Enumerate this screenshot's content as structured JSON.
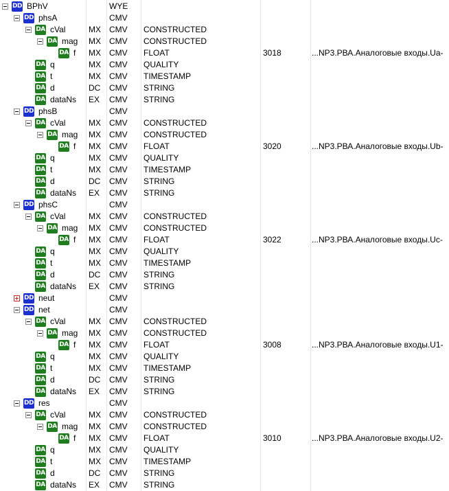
{
  "tree": [
    {
      "depth": 0,
      "kind": "DD",
      "expander": "open",
      "name": "BPhV",
      "fc": "",
      "cdc": "WYE",
      "type": "",
      "addr": "",
      "path": ""
    },
    {
      "depth": 1,
      "kind": "DD",
      "expander": "open",
      "name": "phsA",
      "fc": "",
      "cdc": "CMV",
      "type": "",
      "addr": "",
      "path": ""
    },
    {
      "depth": 2,
      "kind": "DA",
      "expander": "open",
      "name": "cVal",
      "fc": "MX",
      "cdc": "CMV",
      "type": "CONSTRUCTED",
      "addr": "",
      "path": ""
    },
    {
      "depth": 3,
      "kind": "DA",
      "expander": "open",
      "name": "mag",
      "fc": "MX",
      "cdc": "CMV",
      "type": "CONSTRUCTED",
      "addr": "",
      "path": ""
    },
    {
      "depth": 4,
      "kind": "DA",
      "expander": "none",
      "name": "f",
      "fc": "MX",
      "cdc": "CMV",
      "type": "FLOAT",
      "addr": "3018",
      "path": "...NP3.РВА.Аналоговые входы.Ua-"
    },
    {
      "depth": 2,
      "kind": "DA",
      "expander": "none",
      "name": "q",
      "fc": "MX",
      "cdc": "CMV",
      "type": "QUALITY",
      "addr": "",
      "path": ""
    },
    {
      "depth": 2,
      "kind": "DA",
      "expander": "none",
      "name": "t",
      "fc": "MX",
      "cdc": "CMV",
      "type": "TIMESTAMP",
      "addr": "",
      "path": ""
    },
    {
      "depth": 2,
      "kind": "DA",
      "expander": "none",
      "name": "d",
      "fc": "DC",
      "cdc": "CMV",
      "type": "STRING",
      "addr": "",
      "path": ""
    },
    {
      "depth": 2,
      "kind": "DA",
      "expander": "none",
      "name": "dataNs",
      "fc": "EX",
      "cdc": "CMV",
      "type": "STRING",
      "addr": "",
      "path": ""
    },
    {
      "depth": 1,
      "kind": "DD",
      "expander": "open",
      "name": "phsB",
      "fc": "",
      "cdc": "CMV",
      "type": "",
      "addr": "",
      "path": ""
    },
    {
      "depth": 2,
      "kind": "DA",
      "expander": "open",
      "name": "cVal",
      "fc": "MX",
      "cdc": "CMV",
      "type": "CONSTRUCTED",
      "addr": "",
      "path": ""
    },
    {
      "depth": 3,
      "kind": "DA",
      "expander": "open",
      "name": "mag",
      "fc": "MX",
      "cdc": "CMV",
      "type": "CONSTRUCTED",
      "addr": "",
      "path": ""
    },
    {
      "depth": 4,
      "kind": "DA",
      "expander": "none",
      "name": "f",
      "fc": "MX",
      "cdc": "CMV",
      "type": "FLOAT",
      "addr": "3020",
      "path": "...NP3.РВА.Аналоговые входы.Ub-"
    },
    {
      "depth": 2,
      "kind": "DA",
      "expander": "none",
      "name": "q",
      "fc": "MX",
      "cdc": "CMV",
      "type": "QUALITY",
      "addr": "",
      "path": ""
    },
    {
      "depth": 2,
      "kind": "DA",
      "expander": "none",
      "name": "t",
      "fc": "MX",
      "cdc": "CMV",
      "type": "TIMESTAMP",
      "addr": "",
      "path": ""
    },
    {
      "depth": 2,
      "kind": "DA",
      "expander": "none",
      "name": "d",
      "fc": "DC",
      "cdc": "CMV",
      "type": "STRING",
      "addr": "",
      "path": ""
    },
    {
      "depth": 2,
      "kind": "DA",
      "expander": "none",
      "name": "dataNs",
      "fc": "EX",
      "cdc": "CMV",
      "type": "STRING",
      "addr": "",
      "path": ""
    },
    {
      "depth": 1,
      "kind": "DD",
      "expander": "open",
      "name": "phsC",
      "fc": "",
      "cdc": "CMV",
      "type": "",
      "addr": "",
      "path": ""
    },
    {
      "depth": 2,
      "kind": "DA",
      "expander": "open",
      "name": "cVal",
      "fc": "MX",
      "cdc": "CMV",
      "type": "CONSTRUCTED",
      "addr": "",
      "path": ""
    },
    {
      "depth": 3,
      "kind": "DA",
      "expander": "open",
      "name": "mag",
      "fc": "MX",
      "cdc": "CMV",
      "type": "CONSTRUCTED",
      "addr": "",
      "path": ""
    },
    {
      "depth": 4,
      "kind": "DA",
      "expander": "none",
      "name": "f",
      "fc": "MX",
      "cdc": "CMV",
      "type": "FLOAT",
      "addr": "3022",
      "path": "...NP3.РВА.Аналоговые входы.Uc-"
    },
    {
      "depth": 2,
      "kind": "DA",
      "expander": "none",
      "name": "q",
      "fc": "MX",
      "cdc": "CMV",
      "type": "QUALITY",
      "addr": "",
      "path": ""
    },
    {
      "depth": 2,
      "kind": "DA",
      "expander": "none",
      "name": "t",
      "fc": "MX",
      "cdc": "CMV",
      "type": "TIMESTAMP",
      "addr": "",
      "path": ""
    },
    {
      "depth": 2,
      "kind": "DA",
      "expander": "none",
      "name": "d",
      "fc": "DC",
      "cdc": "CMV",
      "type": "STRING",
      "addr": "",
      "path": ""
    },
    {
      "depth": 2,
      "kind": "DA",
      "expander": "none",
      "name": "dataNs",
      "fc": "EX",
      "cdc": "CMV",
      "type": "STRING",
      "addr": "",
      "path": ""
    },
    {
      "depth": 1,
      "kind": "DD",
      "expander": "closed",
      "name": "neut",
      "fc": "",
      "cdc": "CMV",
      "type": "",
      "addr": "",
      "path": ""
    },
    {
      "depth": 1,
      "kind": "DD",
      "expander": "open",
      "name": "net",
      "fc": "",
      "cdc": "CMV",
      "type": "",
      "addr": "",
      "path": ""
    },
    {
      "depth": 2,
      "kind": "DA",
      "expander": "open",
      "name": "cVal",
      "fc": "MX",
      "cdc": "CMV",
      "type": "CONSTRUCTED",
      "addr": "",
      "path": ""
    },
    {
      "depth": 3,
      "kind": "DA",
      "expander": "open",
      "name": "mag",
      "fc": "MX",
      "cdc": "CMV",
      "type": "CONSTRUCTED",
      "addr": "",
      "path": ""
    },
    {
      "depth": 4,
      "kind": "DA",
      "expander": "none",
      "name": "f",
      "fc": "MX",
      "cdc": "CMV",
      "type": "FLOAT",
      "addr": "3008",
      "path": "...NP3.РВА.Аналоговые входы.U1-"
    },
    {
      "depth": 2,
      "kind": "DA",
      "expander": "none",
      "name": "q",
      "fc": "MX",
      "cdc": "CMV",
      "type": "QUALITY",
      "addr": "",
      "path": ""
    },
    {
      "depth": 2,
      "kind": "DA",
      "expander": "none",
      "name": "t",
      "fc": "MX",
      "cdc": "CMV",
      "type": "TIMESTAMP",
      "addr": "",
      "path": ""
    },
    {
      "depth": 2,
      "kind": "DA",
      "expander": "none",
      "name": "d",
      "fc": "DC",
      "cdc": "CMV",
      "type": "STRING",
      "addr": "",
      "path": ""
    },
    {
      "depth": 2,
      "kind": "DA",
      "expander": "none",
      "name": "dataNs",
      "fc": "EX",
      "cdc": "CMV",
      "type": "STRING",
      "addr": "",
      "path": ""
    },
    {
      "depth": 1,
      "kind": "DD",
      "expander": "open",
      "name": "res",
      "fc": "",
      "cdc": "CMV",
      "type": "",
      "addr": "",
      "path": ""
    },
    {
      "depth": 2,
      "kind": "DA",
      "expander": "open",
      "name": "cVal",
      "fc": "MX",
      "cdc": "CMV",
      "type": "CONSTRUCTED",
      "addr": "",
      "path": ""
    },
    {
      "depth": 3,
      "kind": "DA",
      "expander": "open",
      "name": "mag",
      "fc": "MX",
      "cdc": "CMV",
      "type": "CONSTRUCTED",
      "addr": "",
      "path": ""
    },
    {
      "depth": 4,
      "kind": "DA",
      "expander": "none",
      "name": "f",
      "fc": "MX",
      "cdc": "CMV",
      "type": "FLOAT",
      "addr": "3010",
      "path": "...NP3.РВА.Аналоговые входы.U2-"
    },
    {
      "depth": 2,
      "kind": "DA",
      "expander": "none",
      "name": "q",
      "fc": "MX",
      "cdc": "CMV",
      "type": "QUALITY",
      "addr": "",
      "path": ""
    },
    {
      "depth": 2,
      "kind": "DA",
      "expander": "none",
      "name": "t",
      "fc": "MX",
      "cdc": "CMV",
      "type": "TIMESTAMP",
      "addr": "",
      "path": ""
    },
    {
      "depth": 2,
      "kind": "DA",
      "expander": "none",
      "name": "d",
      "fc": "DC",
      "cdc": "CMV",
      "type": "STRING",
      "addr": "",
      "path": ""
    },
    {
      "depth": 2,
      "kind": "DA",
      "expander": "none",
      "name": "dataNs",
      "fc": "EX",
      "cdc": "CMV",
      "type": "STRING",
      "addr": "",
      "path": ""
    }
  ],
  "colors": {
    "dd_badge": "#1c2fcf",
    "da_badge": "#1f7d1f",
    "expander_open": "#8c8c8c",
    "expander_closed": "#c03030",
    "grid": "#e6e6e6"
  }
}
